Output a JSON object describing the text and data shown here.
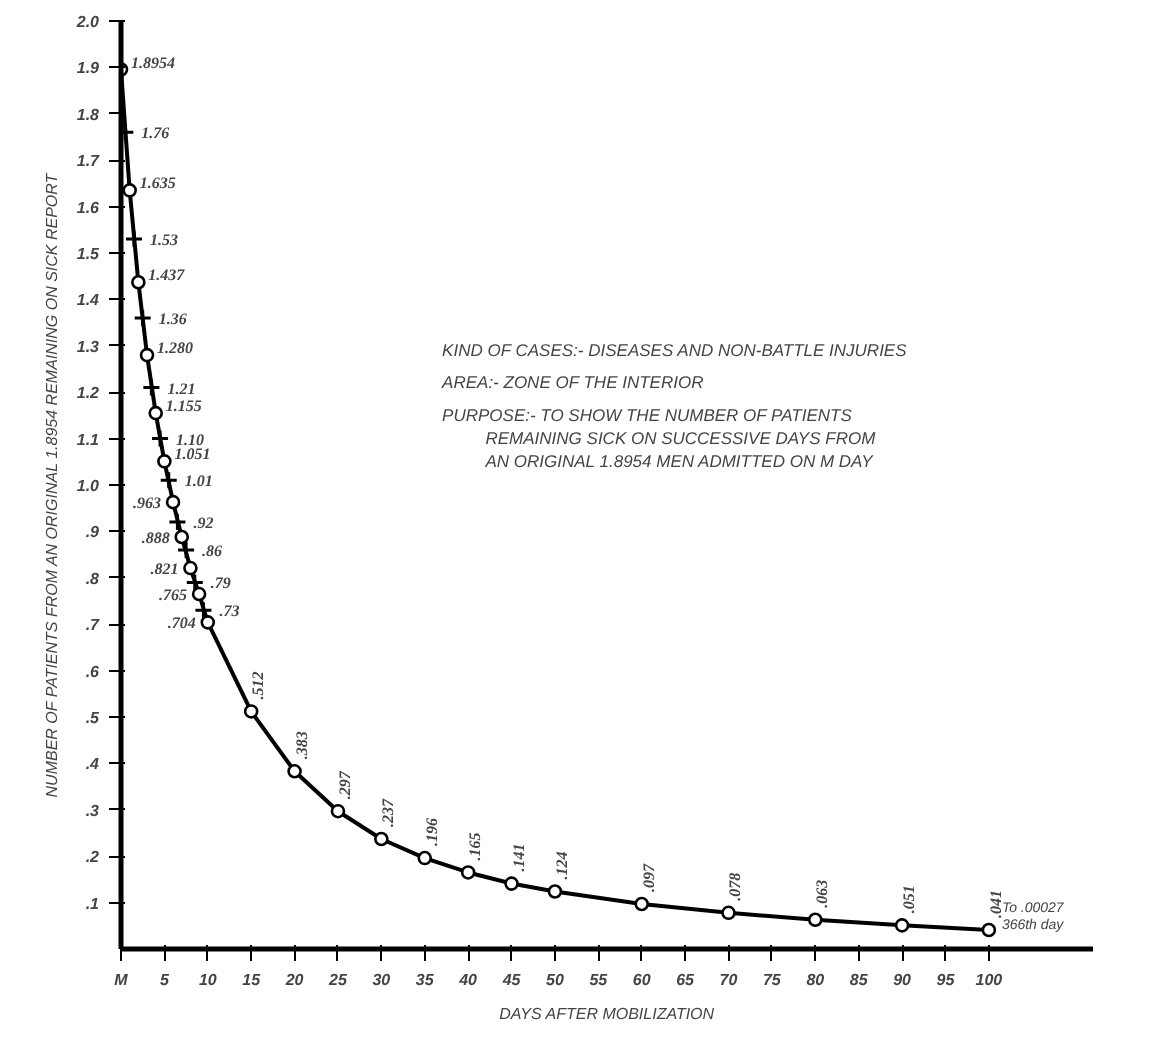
{
  "chart_data": {
    "type": "line",
    "xlabel": "DAYS AFTER MOBILIZATION",
    "ylabel": "NUMBER OF PATIENTS FROM AN ORIGINAL 1.8954 REMAINING ON SICK REPORT",
    "annotations": [
      "KIND OF CASES:- DISEASES AND NON-BATTLE INJURIES",
      "AREA:- ZONE OF THE INTERIOR",
      "PURPOSE:- TO SHOW THE NUMBER OF PATIENTS",
      "REMAINING SICK ON SUCCESSIVE DAYS FROM",
      "AN ORIGINAL 1.8954 MEN ADMITTED ON M DAY",
      "To .00027 366th day"
    ],
    "series": [
      {
        "color": "#000000",
        "marker": "circle",
        "x": [
          0,
          1,
          2,
          3,
          4,
          5,
          6,
          7,
          8,
          9,
          10,
          15,
          20,
          25,
          30,
          35,
          40,
          45,
          50,
          60,
          70,
          80,
          90,
          100
        ],
        "values": [
          1.8954,
          1.635,
          1.437,
          1.28,
          1.155,
          1.051,
          0.963,
          0.888,
          0.821,
          0.765,
          0.704,
          0.512,
          0.383,
          0.297,
          0.237,
          0.196,
          0.165,
          0.141,
          0.124,
          0.097,
          0.078,
          0.063,
          0.051,
          0.041
        ],
        "value_labels": [
          "1.8954",
          "1.635",
          "1.437",
          "1.280",
          "1.155",
          "1.051",
          ".963",
          ".888",
          ".821",
          ".765",
          ".704",
          ".512",
          ".383",
          ".297",
          ".237",
          ".196",
          ".165",
          ".141",
          ".124",
          ".097",
          ".078",
          ".063",
          ".051",
          ".041"
        ]
      },
      {
        "type": "scatter",
        "color": "#000000",
        "marker": "cross",
        "x": [
          0.5,
          1.5,
          2.5,
          3.5,
          4.5,
          5.5,
          6.5,
          7.5,
          8.5,
          9.5
        ],
        "values": [
          1.76,
          1.53,
          1.36,
          1.21,
          1.1,
          1.01,
          0.92,
          0.86,
          0.79,
          0.73
        ],
        "value_labels": [
          "1.76",
          "1.53",
          "1.36",
          "1.21",
          "1.10",
          "1.01",
          ".92",
          ".86",
          ".79",
          ".73"
        ]
      }
    ],
    "xlim": [
      0,
      112
    ],
    "ylim": [
      0,
      2.0
    ],
    "xticks": [
      {
        "value": 0,
        "label": "M"
      },
      5,
      10,
      15,
      20,
      25,
      30,
      35,
      40,
      45,
      50,
      55,
      60,
      65,
      70,
      75,
      80,
      85,
      90,
      95,
      100
    ],
    "yticks": [
      {
        "value": 0.1,
        "label": ".1"
      },
      {
        "value": 0.2,
        "label": ".2"
      },
      {
        "value": 0.3,
        "label": ".3"
      },
      {
        "value": 0.4,
        "label": ".4"
      },
      {
        "value": 0.5,
        "label": ".5"
      },
      {
        "value": 0.6,
        "label": ".6"
      },
      {
        "value": 0.7,
        "label": ".7"
      },
      {
        "value": 0.8,
        "label": ".8"
      },
      {
        "value": 0.9,
        "label": ".9"
      },
      {
        "value": 1.0,
        "label": "1.0"
      },
      1.1,
      1.2,
      1.3,
      1.4,
      1.5,
      1.6,
      1.7,
      1.8,
      1.9,
      {
        "value": 2.0,
        "label": "2.0"
      }
    ],
    "grid": false
  }
}
